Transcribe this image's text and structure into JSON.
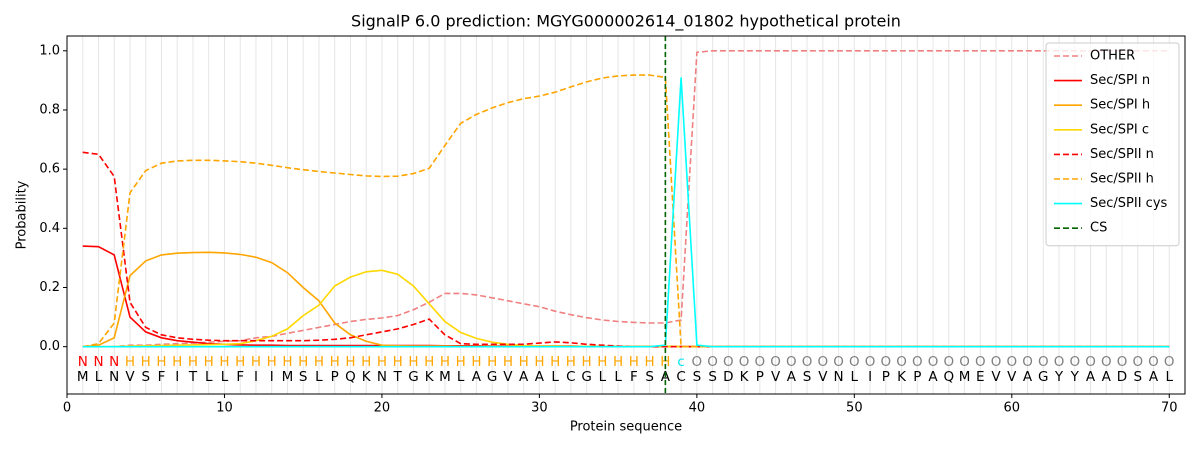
{
  "chart_data": {
    "type": "line",
    "title": "SignalP 6.0 prediction: MGYG000002614_01802 hypothetical protein",
    "xlabel": "Protein sequence",
    "ylabel": "Probability",
    "xlim": [
      0,
      71
    ],
    "ylim": [
      -0.16,
      1.05
    ],
    "xticks": [
      0,
      10,
      20,
      30,
      40,
      50,
      60,
      70
    ],
    "yticks": [
      {
        "value": 0,
        "label": "0.0"
      },
      {
        "value": 0.2,
        "label": "0.2"
      },
      {
        "value": 0.4,
        "label": "0.4"
      },
      {
        "value": 0.6,
        "label": "0.6"
      },
      {
        "value": 0.8,
        "label": "0.8"
      },
      {
        "value": 1.0,
        "label": "1.0"
      }
    ],
    "grid": true,
    "legend": "upper right",
    "x": [
      1,
      2,
      3,
      4,
      5,
      6,
      7,
      8,
      9,
      10,
      11,
      12,
      13,
      14,
      15,
      16,
      17,
      18,
      19,
      20,
      21,
      22,
      23,
      24,
      25,
      26,
      27,
      28,
      29,
      30,
      31,
      32,
      33,
      34,
      35,
      36,
      37,
      38,
      39,
      40,
      41,
      42,
      43,
      44,
      45,
      46,
      47,
      48,
      49,
      50,
      51,
      52,
      53,
      54,
      55,
      56,
      57,
      58,
      59,
      60,
      61,
      62,
      63,
      64,
      65,
      66,
      67,
      68,
      69,
      70
    ],
    "sequence": [
      "M",
      "L",
      "N",
      "V",
      "S",
      "F",
      "I",
      "T",
      "L",
      "L",
      "F",
      "I",
      "I",
      "M",
      "S",
      "L",
      "P",
      "Q",
      "K",
      "N",
      "T",
      "G",
      "K",
      "M",
      "L",
      "A",
      "G",
      "V",
      "A",
      "A",
      "L",
      "C",
      "G",
      "L",
      "L",
      "F",
      "S",
      "A",
      "C",
      "S",
      "S",
      "D",
      "K",
      "P",
      "V",
      "A",
      "S",
      "V",
      "N",
      "L",
      "I",
      "P",
      "K",
      "P",
      "A",
      "Q",
      "M",
      "E",
      "V",
      "V",
      "A",
      "G",
      "Y",
      "Y",
      "A",
      "A",
      "D",
      "S",
      "A",
      "L"
    ],
    "labels": [
      "N",
      "N",
      "N",
      "H",
      "H",
      "H",
      "H",
      "H",
      "H",
      "H",
      "H",
      "H",
      "H",
      "H",
      "H",
      "H",
      "H",
      "H",
      "H",
      "H",
      "H",
      "H",
      "H",
      "H",
      "H",
      "H",
      "H",
      "H",
      "H",
      "H",
      "H",
      "H",
      "H",
      "H",
      "H",
      "H",
      "H",
      "H",
      "c",
      "O",
      "O",
      "O",
      "O",
      "O",
      "O",
      "O",
      "O",
      "O",
      "O",
      "O",
      "O",
      "O",
      "O",
      "O",
      "O",
      "O",
      "O",
      "O",
      "O",
      "O",
      "O",
      "O",
      "O",
      "O",
      "O",
      "O",
      "O",
      "O",
      "O",
      "O"
    ],
    "label_colors": {
      "N": "#ff0000",
      "H": "#ffa500",
      "c": "#00e5ee",
      "O": "#808080"
    },
    "series": [
      {
        "name": "OTHER",
        "color": "#f08080",
        "dash": true,
        "values": [
          0,
          0,
          0,
          0.005,
          0.005,
          0.008,
          0.01,
          0.012,
          0.015,
          0.018,
          0.02,
          0.03,
          0.035,
          0.045,
          0.055,
          0.065,
          0.075,
          0.085,
          0.092,
          0.097,
          0.105,
          0.125,
          0.15,
          0.18,
          0.18,
          0.175,
          0.165,
          0.155,
          0.145,
          0.135,
          0.12,
          0.108,
          0.098,
          0.09,
          0.085,
          0.082,
          0.08,
          0.08,
          0.09,
          0.995,
          1,
          1,
          1,
          1,
          1,
          1,
          1,
          1,
          1,
          1,
          1,
          1,
          1,
          1,
          1,
          1,
          1,
          1,
          1,
          1,
          1,
          1,
          1,
          1,
          1,
          1,
          1,
          1,
          1,
          1
        ]
      },
      {
        "name": "Sec/SPI n",
        "color": "#ff0000",
        "dash": false,
        "values": [
          0.34,
          0.338,
          0.31,
          0.1,
          0.05,
          0.03,
          0.02,
          0.015,
          0.01,
          0.008,
          0.006,
          0.005,
          0.005,
          0.004,
          0.004,
          0.004,
          0.004,
          0.004,
          0.004,
          0.004,
          0.004,
          0.004,
          0.004,
          0.003,
          0.003,
          0.003,
          0.002,
          0.002,
          0.002,
          0.002,
          0.002,
          0.002,
          0.001,
          0.001,
          0.001,
          0.001,
          0.001,
          0.001,
          0,
          0,
          0,
          0,
          0,
          0,
          0,
          0,
          0,
          0,
          0,
          0,
          0,
          0,
          0,
          0,
          0,
          0,
          0,
          0,
          0,
          0,
          0,
          0,
          0,
          0,
          0,
          0,
          0,
          0,
          0,
          0
        ]
      },
      {
        "name": "Sec/SPI h",
        "color": "#ffa500",
        "dash": false,
        "values": [
          0,
          0.005,
          0.03,
          0.24,
          0.29,
          0.31,
          0.316,
          0.318,
          0.319,
          0.317,
          0.312,
          0.302,
          0.284,
          0.25,
          0.2,
          0.155,
          0.08,
          0.04,
          0.018,
          0.005,
          0.003,
          0.002,
          0.002,
          0.002,
          0.001,
          0.001,
          0.001,
          0.001,
          0.001,
          0.001,
          0.001,
          0.001,
          0.001,
          0.001,
          0.001,
          0.001,
          0.001,
          0.001,
          0,
          0,
          0,
          0,
          0,
          0,
          0,
          0,
          0,
          0,
          0,
          0,
          0,
          0,
          0,
          0,
          0,
          0,
          0,
          0,
          0,
          0,
          0,
          0,
          0,
          0,
          0,
          0,
          0,
          0,
          0,
          0
        ]
      },
      {
        "name": "Sec/SPI c",
        "color": "#ffd700",
        "dash": false,
        "values": [
          0,
          0,
          0,
          0.002,
          0.003,
          0.004,
          0.005,
          0.006,
          0.007,
          0.008,
          0.01,
          0.02,
          0.035,
          0.06,
          0.105,
          0.14,
          0.205,
          0.235,
          0.253,
          0.258,
          0.245,
          0.205,
          0.145,
          0.085,
          0.048,
          0.028,
          0.015,
          0.008,
          0.004,
          0.002,
          0.002,
          0.001,
          0.001,
          0.001,
          0.001,
          0.001,
          0.001,
          0.001,
          0,
          0,
          0,
          0,
          0,
          0,
          0,
          0,
          0,
          0,
          0,
          0,
          0,
          0,
          0,
          0,
          0,
          0,
          0,
          0,
          0,
          0,
          0,
          0,
          0,
          0,
          0,
          0,
          0,
          0,
          0,
          0
        ]
      },
      {
        "name": "Sec/SPII n",
        "color": "#ff0000",
        "dash": true,
        "values": [
          0.657,
          0.65,
          0.575,
          0.15,
          0.065,
          0.04,
          0.03,
          0.025,
          0.022,
          0.02,
          0.02,
          0.02,
          0.02,
          0.02,
          0.02,
          0.022,
          0.025,
          0.03,
          0.04,
          0.05,
          0.06,
          0.075,
          0.093,
          0.04,
          0.01,
          0.008,
          0.008,
          0.008,
          0.008,
          0.012,
          0.016,
          0.013,
          0.008,
          0.005,
          0.002,
          0,
          0,
          0,
          0,
          0,
          0,
          0,
          0,
          0,
          0,
          0,
          0,
          0,
          0,
          0,
          0,
          0,
          0,
          0,
          0,
          0,
          0,
          0,
          0,
          0,
          0,
          0,
          0,
          0,
          0,
          0,
          0,
          0,
          0,
          0
        ]
      },
      {
        "name": "Sec/SPII h",
        "color": "#ffa500",
        "dash": true,
        "values": [
          0,
          0.01,
          0.08,
          0.52,
          0.595,
          0.62,
          0.628,
          0.63,
          0.63,
          0.628,
          0.625,
          0.62,
          0.613,
          0.605,
          0.598,
          0.592,
          0.587,
          0.582,
          0.577,
          0.575,
          0.576,
          0.585,
          0.603,
          0.68,
          0.755,
          0.785,
          0.807,
          0.825,
          0.838,
          0.847,
          0.86,
          0.878,
          0.895,
          0.908,
          0.915,
          0.918,
          0.918,
          0.91,
          0,
          0,
          0,
          0,
          0,
          0,
          0,
          0,
          0,
          0,
          0,
          0,
          0,
          0,
          0,
          0,
          0,
          0,
          0,
          0,
          0,
          0,
          0,
          0,
          0,
          0,
          0,
          0,
          0,
          0,
          0,
          0
        ]
      },
      {
        "name": "Sec/SPII cys",
        "color": "#00ffff",
        "dash": false,
        "values": [
          0,
          0,
          0,
          0,
          0,
          0,
          0,
          0,
          0,
          0,
          0,
          0,
          0,
          0,
          0,
          0,
          0,
          0,
          0,
          0,
          0,
          0,
          0,
          0,
          0,
          0,
          0,
          0,
          0,
          0,
          0,
          0,
          0,
          0,
          0,
          0,
          0,
          0.005,
          0.91,
          0.005,
          0,
          0,
          0,
          0,
          0,
          0,
          0,
          0,
          0,
          0,
          0,
          0,
          0,
          0,
          0,
          0,
          0,
          0,
          0,
          0,
          0,
          0,
          0,
          0,
          0,
          0,
          0,
          0,
          0,
          0
        ]
      }
    ],
    "cs": {
      "name": "CS",
      "color": "#006400",
      "x": 38
    }
  }
}
